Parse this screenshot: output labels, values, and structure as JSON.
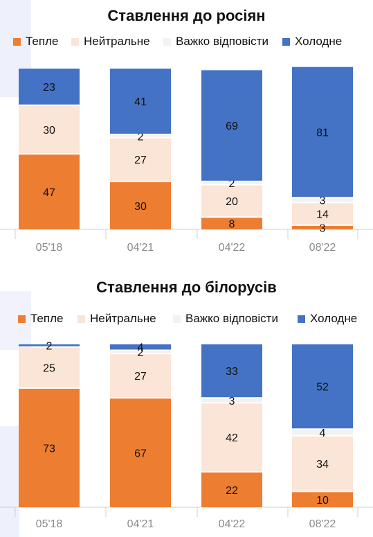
{
  "colors": {
    "warm": "#ed7d31",
    "neutral": "#fbe5d6",
    "hard": "#f2f2f2",
    "cold": "#4472c4"
  },
  "chart_data": [
    {
      "type": "bar",
      "stacked": true,
      "title": "Ставлення до росіян",
      "categories": [
        "05'18",
        "04'21",
        "04'22",
        "08'22"
      ],
      "ylim": [
        0,
        100
      ],
      "legend_position": "top",
      "series": [
        {
          "name": "Тепле",
          "color": "#ed7d31",
          "values": [
            47,
            30,
            8,
            3
          ]
        },
        {
          "name": "Нейтральне",
          "color": "#fbe5d6",
          "values": [
            30,
            27,
            20,
            14
          ]
        },
        {
          "name": "Важко відповісти",
          "color": "#f2f2f2",
          "values": [
            0,
            2,
            2,
            3
          ]
        },
        {
          "name": "Холодне",
          "color": "#4472c4",
          "values": [
            23,
            41,
            69,
            81
          ]
        }
      ],
      "data_labels": [
        [
          "47",
          "30",
          "",
          "23"
        ],
        [
          "30",
          "27",
          "2",
          "41"
        ],
        [
          "8",
          "20",
          "2",
          "69"
        ],
        [
          "3",
          "14",
          "3",
          "81"
        ]
      ]
    },
    {
      "type": "bar",
      "stacked": true,
      "title": "Ставлення до білорусів",
      "categories": [
        "05'18",
        "04'21",
        "04'22",
        "08'22"
      ],
      "ylim": [
        0,
        100
      ],
      "legend_position": "top",
      "series": [
        {
          "name": "Тепле",
          "color": "#ed7d31",
          "values": [
            73,
            67,
            22,
            10
          ]
        },
        {
          "name": "Нейтральне",
          "color": "#fbe5d6",
          "values": [
            25,
            27,
            42,
            34
          ]
        },
        {
          "name": "Важко відповісти",
          "color": "#f2f2f2",
          "values": [
            0,
            2,
            3,
            4
          ]
        },
        {
          "name": "Холодне",
          "color": "#4472c4",
          "values": [
            2,
            4,
            33,
            52
          ]
        }
      ],
      "data_labels": [
        [
          "73",
          "25",
          "",
          "2"
        ],
        [
          "67",
          "27",
          "2",
          "4"
        ],
        [
          "22",
          "42",
          "3",
          "33"
        ],
        [
          "10",
          "34",
          "4",
          "52"
        ]
      ]
    }
  ]
}
